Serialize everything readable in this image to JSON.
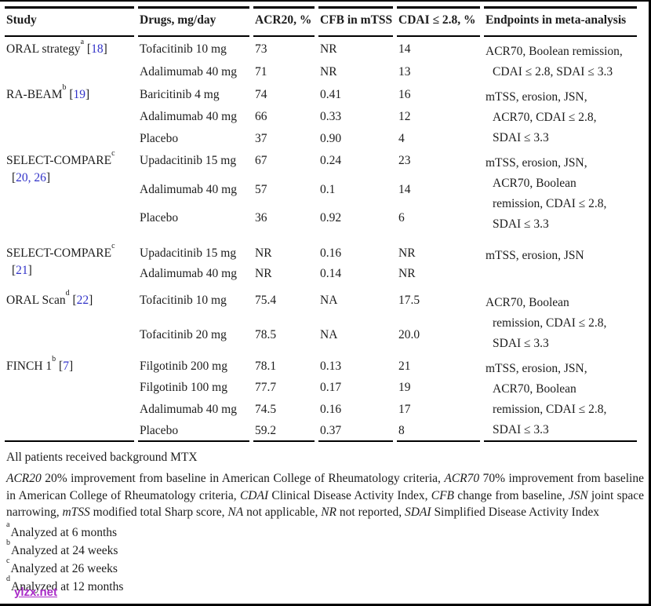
{
  "table": {
    "headers": [
      "Study",
      "Drugs, mg/day",
      "ACR20, %",
      "CFB in mTSS",
      "CDAI ≤ 2.8, %",
      "Endpoints in meta-analysis"
    ],
    "sections": [
      {
        "study": {
          "name": "ORAL strategy",
          "sup": "a",
          "ref": "18",
          "ref_line2": false
        },
        "rows": [
          {
            "drug": "Tofacitinib 10 mg",
            "acr20": "73",
            "cfb": "NR",
            "cdai": "14"
          },
          {
            "drug": "Adalimumab 40 mg",
            "acr20": "71",
            "cfb": "NR",
            "cdai": "13"
          }
        ],
        "endpoints": [
          "ACR70, Boolean remission,",
          "CDAI ≤ 2.8, SDAI ≤ 3.3"
        ]
      },
      {
        "study": {
          "name": "RA-BEAM",
          "sup": "b",
          "ref": "19",
          "ref_line2": false
        },
        "rows": [
          {
            "drug": "Baricitinib 4 mg",
            "acr20": "74",
            "cfb": "0.41",
            "cdai": "16"
          },
          {
            "drug": "Adalimumab 40 mg",
            "acr20": "66",
            "cfb": "0.33",
            "cdai": "12"
          },
          {
            "drug": "Placebo",
            "acr20": "37",
            "cfb": "0.90",
            "cdai": "4"
          }
        ],
        "endpoints": [
          "mTSS, erosion, JSN,",
          "ACR70, CDAI ≤ 2.8,",
          "SDAI ≤ 3.3"
        ]
      },
      {
        "study": {
          "name": "SELECT-COMPARE",
          "sup": "c",
          "ref": "20, 26",
          "ref_line2": true
        },
        "rows": [
          {
            "drug": "Upadacitinib 15 mg",
            "acr20": "67",
            "cfb": "0.24",
            "cdai": "23"
          },
          {
            "drug": "Adalimumab 40 mg",
            "acr20": "57",
            "cfb": "0.1",
            "cdai": "14"
          },
          {
            "drug": "Placebo",
            "acr20": "36",
            "cfb": "0.92",
            "cdai": "6"
          }
        ],
        "endpoints": [
          "mTSS, erosion, JSN,",
          "ACR70, Boolean",
          "remission, CDAI ≤ 2.8,",
          "SDAI ≤ 3.3"
        ]
      },
      {
        "study": {
          "name": "SELECT-COMPARE",
          "sup": "c",
          "ref": "21",
          "ref_line2": true
        },
        "rows": [
          {
            "drug": "Upadacitinib 15 mg",
            "acr20": "NR",
            "cfb": "0.16",
            "cdai": "NR"
          },
          {
            "drug": "Adalimumab 40 mg",
            "acr20": "NR",
            "cfb": "0.14",
            "cdai": "NR"
          }
        ],
        "endpoints": [
          "mTSS, erosion, JSN"
        ]
      },
      {
        "study": {
          "name": "ORAL Scan",
          "sup": "d",
          "ref": "22",
          "ref_line2": false
        },
        "rows": [
          {
            "drug": "Tofacitinib 10 mg",
            "acr20": "75.4",
            "cfb": "NA",
            "cdai": "17.5"
          },
          {
            "drug": "Tofacitinib 20 mg",
            "acr20": "78.5",
            "cfb": "NA",
            "cdai": "20.0"
          }
        ],
        "endpoints": [
          "ACR70, Boolean",
          "remission, CDAI ≤ 2.8,",
          "SDAI ≤ 3.3"
        ]
      },
      {
        "study": {
          "name": "FINCH 1",
          "sup": "b",
          "ref": "7",
          "ref_line2": false
        },
        "rows": [
          {
            "drug": "Filgotinib 200 mg",
            "acr20": "78.1",
            "cfb": "0.13",
            "cdai": "21"
          },
          {
            "drug": "Filgotinib 100 mg",
            "acr20": "77.7",
            "cfb": "0.17",
            "cdai": "19"
          },
          {
            "drug": "Adalimumab 40 mg",
            "acr20": "74.5",
            "cfb": "0.16",
            "cdai": "17"
          },
          {
            "drug": "Placebo",
            "acr20": "59.2",
            "cfb": "0.37",
            "cdai": "8"
          }
        ],
        "endpoints": [
          "mTSS, erosion, JSN,",
          "ACR70, Boolean",
          "remission, CDAI ≤ 2.8,",
          "SDAI ≤ 3.3"
        ]
      }
    ]
  },
  "notes": {
    "background": "All patients received background MTX",
    "abbreviations": [
      {
        "text": "ACR20",
        "italic": true
      },
      {
        "text": " 20% improvement from baseline in American College of Rheumatology criteria, "
      },
      {
        "text": "ACR70",
        "italic": true
      },
      {
        "text": " 70% improvement from baseline in American College of Rheumatology criteria, "
      },
      {
        "text": "CDAI",
        "italic": true
      },
      {
        "text": " Clinical Disease Activity Index, "
      },
      {
        "text": "CFB",
        "italic": true
      },
      {
        "text": " change from baseline, "
      },
      {
        "text": "JSN",
        "italic": true
      },
      {
        "text": " joint space narrowing, "
      },
      {
        "text": "mTSS",
        "italic": true
      },
      {
        "text": " modified total Sharp score, "
      },
      {
        "text": "NA",
        "italic": true
      },
      {
        "text": " not applicable, "
      },
      {
        "text": "NR",
        "italic": true
      },
      {
        "text": " not reported, "
      },
      {
        "text": "SDAI",
        "italic": true
      },
      {
        "text": " Simplified Disease Activity Index"
      }
    ],
    "footnotes": [
      {
        "sup": "a",
        "text": "Analyzed at 6 months"
      },
      {
        "sup": "b",
        "text": "Analyzed at 24 weeks"
      },
      {
        "sup": "c",
        "text": "Analyzed at 26 weeks"
      },
      {
        "sup": "d",
        "text": "Analyzed at 12 months"
      }
    ],
    "watermark": "ylzx.net"
  },
  "colors": {
    "reference_blue": "#3132c8",
    "watermark_purple": "#a92bc8",
    "text": "#1c1c1c"
  }
}
